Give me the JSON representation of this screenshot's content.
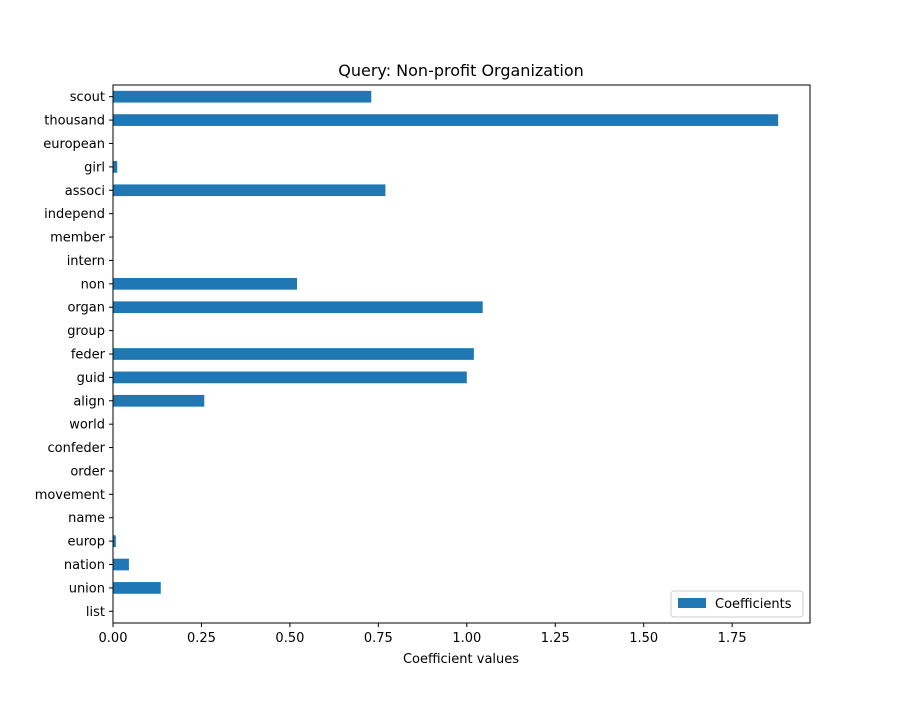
{
  "chart_data": {
    "type": "bar",
    "orientation": "horizontal",
    "title": "Query: Non-profit Organization",
    "xlabel": "Coefficient values",
    "ylabel": "",
    "xlim": [
      0,
      1.97
    ],
    "xticks": [
      0.0,
      0.25,
      0.5,
      0.75,
      1.0,
      1.25,
      1.5,
      1.75
    ],
    "xtick_labels": [
      "0.00",
      "0.25",
      "0.50",
      "0.75",
      "1.00",
      "1.25",
      "1.50",
      "1.75"
    ],
    "grid": false,
    "legend_position": "bottom-right",
    "categories": [
      "list",
      "union",
      "nation",
      "europ",
      "name",
      "movement",
      "order",
      "confeder",
      "world",
      "align",
      "guid",
      "feder",
      "group",
      "organ",
      "non",
      "intern",
      "member",
      "independ",
      "associ",
      "girl",
      "european",
      "thousand",
      "scout"
    ],
    "series": [
      {
        "name": "Coefficients",
        "color": "#1f77b4",
        "values": [
          0.0,
          0.135,
          0.045,
          0.008,
          0.0,
          0.0,
          0.0,
          0.0,
          0.0,
          0.258,
          1.0,
          1.02,
          0.0,
          1.045,
          0.52,
          0.0,
          0.0,
          0.0,
          0.77,
          0.012,
          0.0,
          1.88,
          0.73
        ]
      }
    ]
  }
}
